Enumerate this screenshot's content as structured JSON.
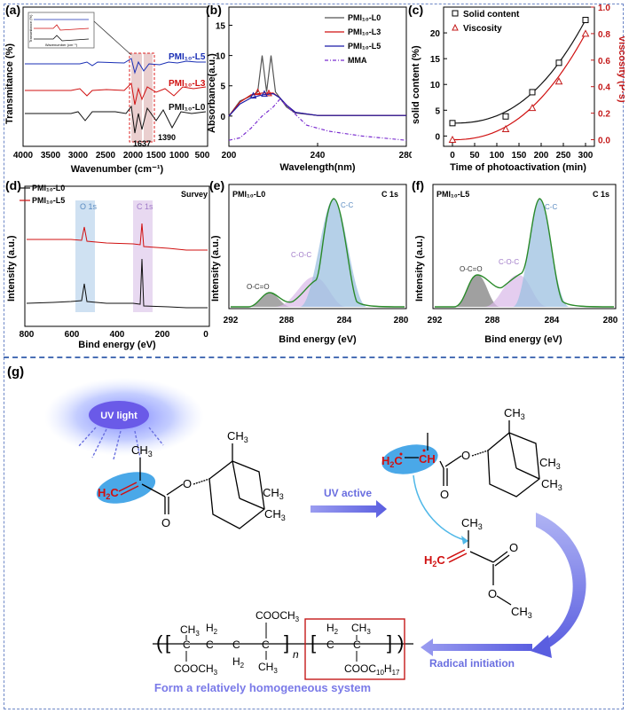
{
  "panels": {
    "a": {
      "label": "(a)",
      "ylabel": "Transmitance (%)",
      "xlabel": "Wavenumber (cm⁻¹)",
      "xticks": [
        "4000",
        "3500",
        "3000",
        "2500",
        "2000",
        "1500",
        "1000",
        "500"
      ],
      "peak1": "1637",
      "peak2": "1390",
      "legend": [
        "PMI₁₀-L5",
        "PMI₁₀-L3",
        "PMI₁₀-L0"
      ],
      "inset_ylabel": "Transmitance (%)",
      "inset_xlabel": "Wavenumber (cm⁻¹)"
    },
    "b": {
      "label": "(b)",
      "ylabel": "Absorbance(a.u.)",
      "xlabel": "Wavelength(nm)",
      "yticks": [
        "0",
        "5",
        "10",
        "15"
      ],
      "xticks": [
        "200",
        "240",
        "280"
      ],
      "legend": [
        "PMI₁₀-L0",
        "PMI₁₀-L3",
        "PMI₁₀-L5",
        "MMA"
      ]
    },
    "c": {
      "label": "(c)",
      "ylabel_left": "solid content (%)",
      "ylabel_right": "Viscosity (P·s)",
      "xlabel": "Time of photoactivation (min)",
      "xticks": [
        "0",
        "50",
        "100",
        "150",
        "200",
        "250",
        "300"
      ],
      "yticks_left": [
        "0",
        "5",
        "10",
        "15",
        "20"
      ],
      "yticks_right": [
        "0.0",
        "0.2",
        "0.4",
        "0.6",
        "0.8",
        "1.0"
      ],
      "legend": [
        "Solid content",
        "Viscosity"
      ]
    },
    "d": {
      "label": "(d)",
      "ylabel": "Intensity (a.u.)",
      "xlabel": "Bind energy (eV)",
      "xticks": [
        "800",
        "600",
        "400",
        "200",
        "0"
      ],
      "legend": [
        "PMI₁₀-L0",
        "PMI₁₀-L5"
      ],
      "survey": "Survey",
      "o1s": "O 1s",
      "c1s": "C 1s"
    },
    "e": {
      "label": "(e)",
      "ylabel": "Intensity (a.u.)",
      "xlabel": "Bind energy (eV)",
      "xticks": [
        "292",
        "288",
        "284",
        "280"
      ],
      "sample": "PMI₁₀-L0",
      "core": "C 1s",
      "peaks": [
        "O-C=O",
        "C-O-C",
        "C-C"
      ]
    },
    "f": {
      "label": "(f)",
      "ylabel": "Intensity (a.u.)",
      "xlabel": "Bind energy (eV)",
      "xticks": [
        "292",
        "288",
        "284",
        "280"
      ],
      "sample": "PMI₁₀-L5",
      "core": "C 1s",
      "peaks": [
        "O-C=O",
        "C-O-C",
        "C-C"
      ]
    },
    "g": {
      "label": "(g)",
      "uv_light": "UV light",
      "uv_active": "UV active",
      "radical_initiation": "Radical initiation",
      "caption": "Form a relatively homogeneous system",
      "n": "n"
    }
  },
  "chart_data": [
    {
      "panel": "c",
      "type": "scatter",
      "x": [
        0,
        120,
        180,
        240,
        300
      ],
      "series": [
        {
          "name": "Solid content",
          "axis": "left",
          "values": [
            2.5,
            3.8,
            8.5,
            14.2,
            22.5
          ]
        },
        {
          "name": "Viscosity",
          "axis": "right",
          "values": [
            0.0,
            0.08,
            0.24,
            0.44,
            0.8
          ]
        }
      ],
      "xlabel": "Time of photoactivation (min)",
      "ylabel": "solid content (%)",
      "y2label": "Viscosity (P·s)",
      "xlim": [
        -20,
        320
      ],
      "ylim": [
        -2,
        25
      ],
      "y2lim": [
        -0.05,
        1.0
      ]
    },
    {
      "panel": "b",
      "type": "line",
      "xlabel": "Wavelength(nm)",
      "ylabel": "Absorbance(a.u.)",
      "xlim": [
        200,
        280
      ],
      "ylim": [
        -5,
        18
      ],
      "series": [
        {
          "name": "PMI₁₀-L0",
          "x": [
            200,
            205,
            210,
            213,
            215,
            217,
            219,
            221,
            223,
            226,
            230,
            240,
            260,
            280
          ],
          "values": [
            0,
            2.5,
            3.3,
            4,
            10,
            4,
            10,
            4,
            3,
            1.5,
            0.5,
            0.1,
            0.1,
            0.1
          ]
        },
        {
          "name": "PMI₁₀-L3",
          "x": [
            200,
            205,
            210,
            215,
            220,
            223,
            226,
            230,
            240,
            260,
            280
          ],
          "values": [
            0,
            2.3,
            3.5,
            3.8,
            3.8,
            3,
            1.8,
            0.6,
            0.1,
            0.1,
            0.1
          ]
        },
        {
          "name": "PMI₁₀-L5",
          "x": [
            200,
            205,
            210,
            215,
            220,
            223,
            226,
            230,
            240,
            260,
            280
          ],
          "values": [
            0,
            2,
            3,
            3.5,
            3.7,
            3,
            1.8,
            0.6,
            0.1,
            0.1,
            0.1
          ]
        },
        {
          "name": "MMA",
          "x": [
            200,
            205,
            210,
            215,
            220,
            223,
            228,
            235,
            245,
            260,
            280
          ],
          "values": [
            -4,
            -3.6,
            -2,
            0,
            1.5,
            2.8,
            1,
            -1.5,
            -2.5,
            -3.3,
            -4
          ]
        }
      ]
    }
  ]
}
